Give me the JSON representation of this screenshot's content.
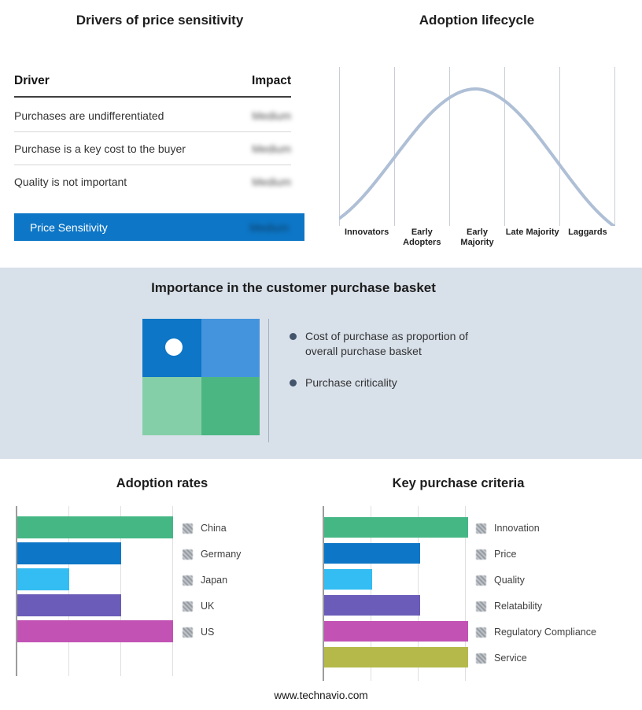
{
  "footer": {
    "text": "www.technavio.com"
  },
  "colors": {
    "band_bg": "#d8e0ea",
    "highlight_blue": "#0d76c6",
    "curve": "#aebfd6",
    "bullet_dot": "#44546a",
    "quadrant": {
      "top_left": "#0d76c6",
      "top_right": "#4494dd",
      "bottom_left": "#85cfa8",
      "bottom_right": "#4cb682"
    }
  },
  "drivers_panel": {
    "title": "Drivers of price sensitivity",
    "columns": {
      "driver": "Driver",
      "impact": "Impact"
    },
    "rows": [
      {
        "driver": "Purchases are undifferentiated",
        "impact": "Medium"
      },
      {
        "driver": "Purchase is a key cost to the buyer",
        "impact": "Medium"
      },
      {
        "driver": "Quality is not important",
        "impact": "Medium"
      }
    ],
    "highlight": {
      "driver": "Price Sensitivity",
      "impact": "Medium"
    },
    "impact_values_blurred": true
  },
  "lifecycle_panel": {
    "title": "Adoption lifecycle",
    "stages": [
      "Innovators",
      "Early Adopters",
      "Early Majority",
      "Late Majority",
      "Laggards"
    ]
  },
  "basket_panel": {
    "title": "Importance in the customer purchase basket",
    "bullets": [
      "Cost of purchase as proportion of overall purchase basket",
      "Purchase criticality"
    ]
  },
  "chart_data": [
    {
      "id": "adoption_rates",
      "type": "bar",
      "orientation": "horizontal",
      "title": "Adoption rates",
      "categories": [
        "China",
        "Germany",
        "Japan",
        "UK",
        "US"
      ],
      "values": [
        3,
        2,
        1,
        2,
        3
      ],
      "max": 3,
      "x_range": [
        0,
        3
      ],
      "gridline_interval": 1,
      "grid": true,
      "legend_position": "right",
      "values_estimated_from_gridlines": true,
      "colors": [
        "#45b785",
        "#0d76c6",
        "#33bdf2",
        "#6a5cb8",
        "#c253b4"
      ]
    },
    {
      "id": "key_purchase_criteria",
      "type": "bar",
      "orientation": "horizontal",
      "title": "Key purchase criteria",
      "categories": [
        "Innovation",
        "Price",
        "Quality",
        "Relatability",
        "Regulatory Compliance",
        "Service"
      ],
      "values": [
        3,
        2,
        1,
        2,
        3,
        3
      ],
      "max": 3,
      "x_range": [
        0,
        3
      ],
      "gridline_interval": 1,
      "grid": true,
      "legend_position": "right",
      "values_estimated_from_gridlines": true,
      "colors": [
        "#45b785",
        "#0d76c6",
        "#33bdf2",
        "#6a5cb8",
        "#c253b4",
        "#b5b94a"
      ]
    },
    {
      "id": "adoption_lifecycle",
      "type": "line",
      "title": "Adoption lifecycle",
      "x": [
        "Innovators",
        "Early Adopters",
        "Early Majority",
        "Late Majority",
        "Laggards"
      ],
      "values": [
        0.1,
        0.55,
        1.0,
        0.55,
        0.1
      ],
      "shape": "bell curve peaking at Early Majority",
      "grid": true
    }
  ]
}
